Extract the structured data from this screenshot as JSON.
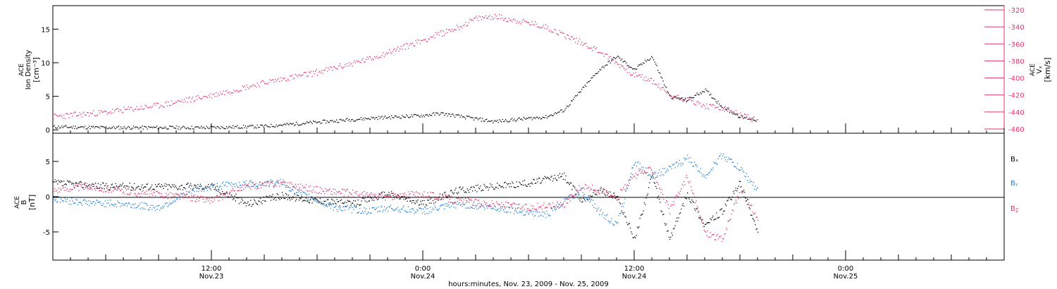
{
  "colors": {
    "density": "#000000",
    "vx": "#e0356a",
    "bx": "#000000",
    "by": "#1f7fd6",
    "bz": "#e0356a"
  },
  "x_axis": {
    "title": "hours:minutes, Nov. 23, 2009 - Nov. 25, 2009",
    "major_ticks": [
      {
        "time": "12:00",
        "date": "Nov.23",
        "hours": 12
      },
      {
        "time": "0:00",
        "date": "Nov.24",
        "hours": 24
      },
      {
        "time": "12:00",
        "date": "Nov.24",
        "hours": 36
      },
      {
        "time": "0:00",
        "date": "Nov.25",
        "hours": 48
      }
    ],
    "range_hours": [
      3,
      57
    ]
  },
  "chart_data": [
    {
      "type": "scatter",
      "panel": "top",
      "left_axis": {
        "label_line1": "ACE",
        "label_line2": "Ion Density",
        "units": "[cm⁻³]",
        "ylim": [
          -0.5,
          18.5
        ],
        "ticks": [
          0,
          5,
          10,
          15
        ]
      },
      "right_axis": {
        "label_line1": "ACE",
        "label_line2": "Vₓ",
        "units": "[km/s]",
        "ylim": [
          -465,
          -315
        ],
        "ticks": [
          -320,
          -340,
          -360,
          -380,
          -400,
          -420,
          -440,
          -460
        ]
      },
      "series": [
        {
          "key": "density",
          "x_hours": [
            3,
            6,
            9,
            12,
            15,
            18,
            21,
            24,
            25,
            28,
            31,
            32,
            33,
            34,
            35,
            36,
            37,
            38,
            39,
            40,
            41,
            42,
            43
          ],
          "y": [
            0.5,
            0.4,
            0.4,
            0.4,
            0.6,
            1.2,
            1.8,
            2.2,
            2.5,
            1.3,
            2.0,
            3.0,
            6.0,
            9.0,
            11.0,
            9.0,
            11.0,
            5.0,
            4.5,
            6.0,
            3.5,
            2.0,
            1.5
          ]
        },
        {
          "key": "vx",
          "x_hours": [
            3,
            6,
            9,
            12,
            15,
            18,
            21,
            24,
            26,
            27,
            28,
            30,
            31,
            32,
            33,
            34,
            35,
            36,
            37,
            38,
            39,
            40,
            41,
            42,
            43
          ],
          "y": [
            -445,
            -440,
            -432,
            -420,
            -405,
            -393,
            -377,
            -355,
            -340,
            -330,
            -327,
            -335,
            -340,
            -349,
            -358,
            -368,
            -382,
            -396,
            -403,
            -420,
            -425,
            -433,
            -435,
            -443,
            -450
          ]
        }
      ]
    },
    {
      "type": "scatter",
      "panel": "bottom",
      "left_axis": {
        "label_line1": "ACE",
        "label_line2": "B",
        "units": "[nT]",
        "ylim": [
          -9,
          9
        ],
        "ticks": [
          -5,
          0,
          5
        ]
      },
      "legend": [
        "Bₓ",
        "Bᵧ",
        "B𝓏"
      ],
      "series": [
        {
          "key": "bx",
          "x_hours": [
            3,
            6,
            9,
            12,
            14,
            16,
            18,
            20,
            22,
            24,
            26,
            28,
            30,
            32,
            33,
            34,
            35,
            36,
            37,
            38,
            39,
            40,
            41,
            42,
            43
          ],
          "y": [
            2.0,
            1.5,
            1.5,
            1.5,
            -1.0,
            0.2,
            -0.5,
            -1.0,
            0.5,
            -1.0,
            1.0,
            1.5,
            2.0,
            3.0,
            -0.5,
            1.0,
            0.0,
            -6.0,
            3.0,
            -6.0,
            0.5,
            -4.0,
            -2.0,
            2.0,
            -5.0
          ]
        },
        {
          "key": "by",
          "x_hours": [
            3,
            5,
            7,
            9,
            11,
            13,
            16,
            17,
            19,
            21,
            22,
            24,
            26,
            28,
            31,
            33,
            34,
            35,
            36,
            37,
            38,
            39,
            40,
            41,
            42,
            43
          ],
          "y": [
            -0.3,
            -0.8,
            -1.0,
            -1.5,
            1.0,
            1.8,
            2.0,
            0.5,
            -1.5,
            -2.0,
            -1.5,
            -2.0,
            -1.0,
            -1.5,
            -2.5,
            1.0,
            -2.0,
            -4.0,
            5.0,
            3.0,
            4.0,
            5.5,
            3.0,
            6.0,
            4.0,
            1.0
          ]
        },
        {
          "key": "bz",
          "x_hours": [
            3,
            5,
            8,
            10,
            12,
            14,
            16,
            18,
            20,
            22,
            24,
            26,
            28,
            30,
            32,
            33,
            34,
            35,
            36,
            37,
            38,
            39,
            40,
            41,
            42,
            43
          ],
          "y": [
            1.0,
            1.5,
            0.5,
            0.2,
            -0.5,
            1.5,
            2.0,
            1.0,
            0.5,
            0.0,
            0.5,
            -0.5,
            -1.0,
            -1.5,
            -1.0,
            1.5,
            1.0,
            0.0,
            3.0,
            4.0,
            -2.0,
            3.0,
            -5.0,
            -6.0,
            1.0,
            -3.0
          ]
        }
      ]
    }
  ]
}
